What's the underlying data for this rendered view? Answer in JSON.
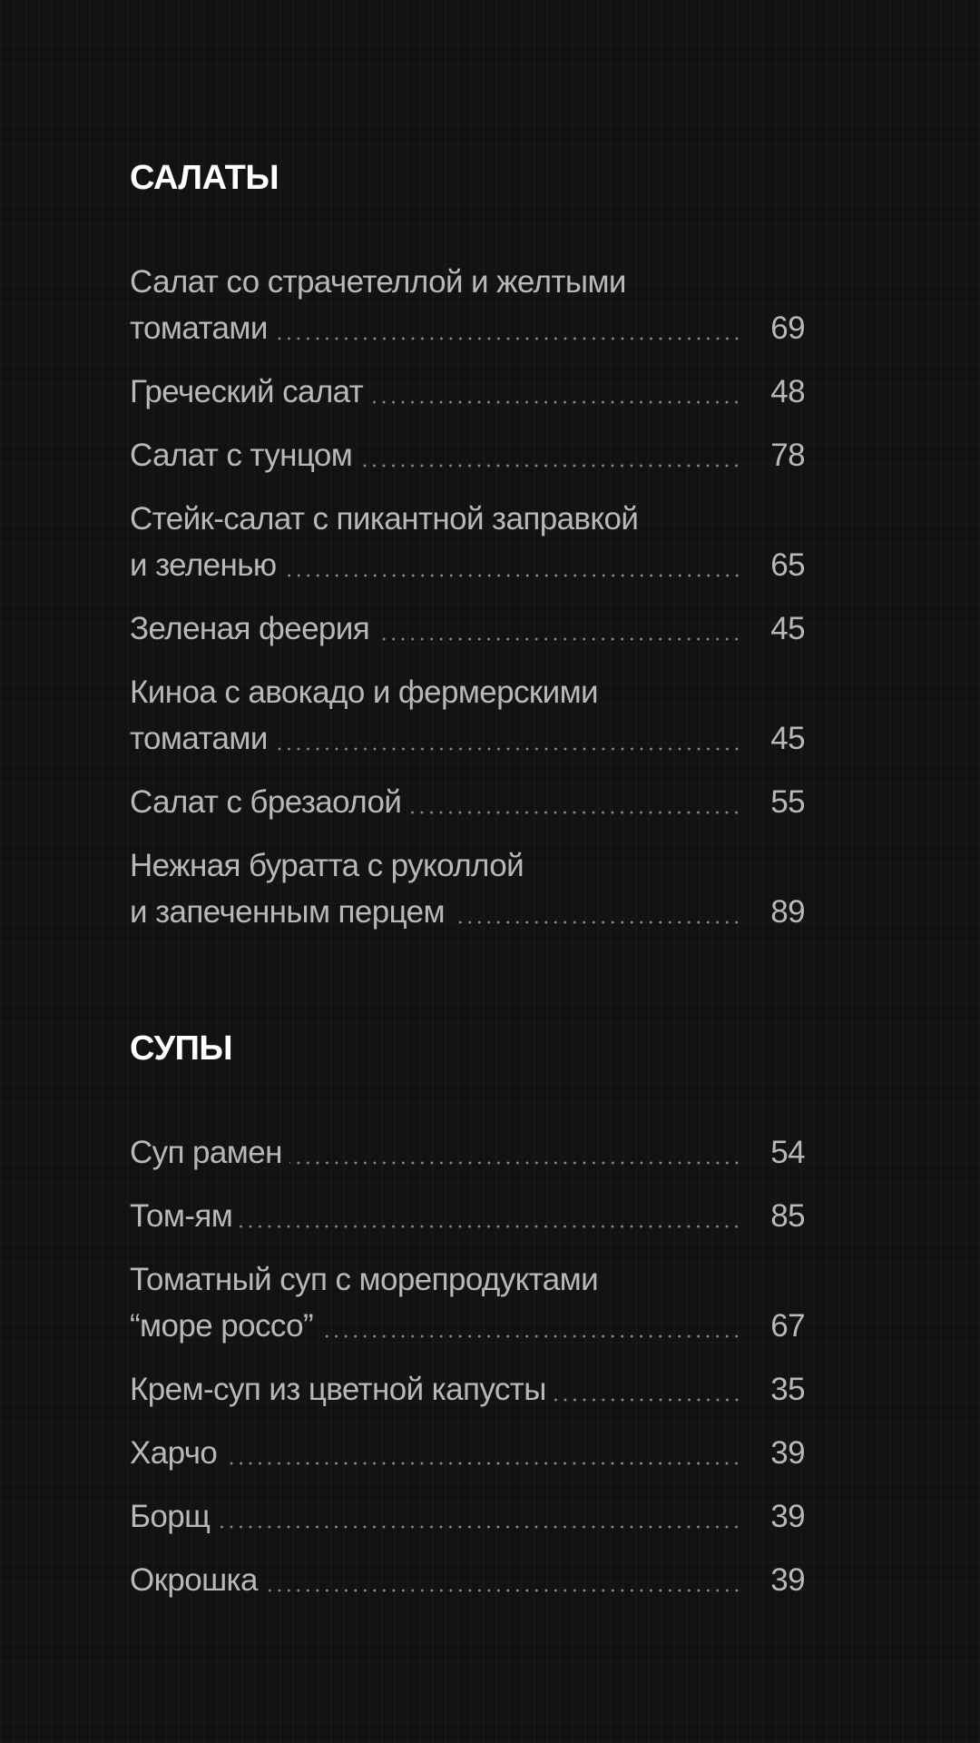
{
  "sections": [
    {
      "title": "САЛАТЫ",
      "items": [
        {
          "name_lines": [
            "Салат со страчетеллой и желтыми",
            "томатами"
          ],
          "price": "69"
        },
        {
          "name_lines": [
            "Греческий салат"
          ],
          "price": "48"
        },
        {
          "name_lines": [
            "Салат с тунцом"
          ],
          "price": "78"
        },
        {
          "name_lines": [
            "Стейк-салат с пикантной заправкой",
            "и зеленью"
          ],
          "price": "65"
        },
        {
          "name_lines": [
            "Зеленая феерия"
          ],
          "price": "45"
        },
        {
          "name_lines": [
            "Киноа с авокадо и фермерскими",
            "томатами"
          ],
          "price": "45"
        },
        {
          "name_lines": [
            "Салат с брезаолой"
          ],
          "price": "55"
        },
        {
          "name_lines": [
            "Нежная буратта с руколлой",
            "и запеченным перцем"
          ],
          "price": "89"
        }
      ]
    },
    {
      "title": "СУПЫ",
      "items": [
        {
          "name_lines": [
            "Суп рамен"
          ],
          "price": "54"
        },
        {
          "name_lines": [
            "Том-ям"
          ],
          "price": "85"
        },
        {
          "name_lines": [
            "Томатный суп с морепродуктами",
            "“море россо”"
          ],
          "price": "67"
        },
        {
          "name_lines": [
            "Крем-суп из цветной капусты"
          ],
          "price": "35"
        },
        {
          "name_lines": [
            "Харчо"
          ],
          "price": "39"
        },
        {
          "name_lines": [
            "Борщ"
          ],
          "price": "39"
        },
        {
          "name_lines": [
            "Окрошка"
          ],
          "price": "39"
        }
      ]
    }
  ],
  "colors": {
    "background": "#121212",
    "heading": "#ffffff",
    "text": "#b8b8b8"
  }
}
